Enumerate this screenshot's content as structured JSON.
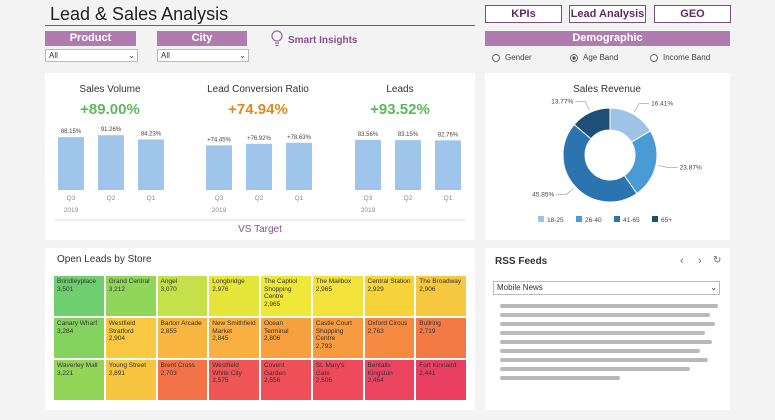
{
  "header": {
    "title": "Lead & Sales Analysis",
    "nav": [
      "KPIs",
      "Lead Analysis",
      "GEO"
    ]
  },
  "filters": [
    {
      "label": "Product",
      "value": "All"
    },
    {
      "label": "City",
      "value": "All"
    }
  ],
  "insights": "Smart Insights",
  "demographic": {
    "title": "Demographic",
    "options": [
      "Gender",
      "Age Band",
      "Income Band"
    ],
    "selected": 1
  },
  "kpis": [
    {
      "title": "Sales Volume",
      "headline": "+89.00%",
      "headline_color": "#5cb85c",
      "year": "2019",
      "categories": [
        "Q3",
        "Q2",
        "Q1"
      ],
      "values": [
        88.15,
        91.26,
        84.23
      ],
      "value_labels": [
        "88.15%",
        "91.26%",
        "84.23%"
      ]
    },
    {
      "title": "Lead Conversion Ratio",
      "headline": "+74.94%",
      "headline_color": "#e08a1e",
      "year": "2019",
      "categories": [
        "Q3",
        "Q2",
        "Q1"
      ],
      "values": [
        74.45,
        76.92,
        78.63
      ],
      "value_labels": [
        "+74.45%",
        "+76.92%",
        "+78.63%"
      ]
    },
    {
      "title": "Leads",
      "headline": "+93.52%",
      "headline_color": "#5cb85c",
      "year": "2019",
      "categories": [
        "Q3",
        "Q2",
        "Q1"
      ],
      "values": [
        83.56,
        83.15,
        82.76
      ],
      "value_labels": [
        "83.56%",
        "83.15%",
        "82.76%"
      ]
    }
  ],
  "kpi_bar_color": "#9fc5ea",
  "kpi_ylim": [
    0,
    100
  ],
  "kpi_footer": "VS Target",
  "revenue": {
    "title": "Sales Revenue",
    "categories": [
      "18-25",
      "26-40",
      "41-65",
      "65+"
    ],
    "values": [
      16.41,
      23.87,
      45.85,
      13.77
    ],
    "value_labels": [
      "16.41%",
      "23.87%",
      "45.85%",
      "13.77%"
    ],
    "colors": [
      "#9dc3e6",
      "#4a9ad4",
      "#2b74b0",
      "#1d4f78"
    ]
  },
  "stores": {
    "title": "Open Leads by Store",
    "cells": [
      {
        "name": "Brindleyplace",
        "value": "3,501",
        "color": "#6fcf6f"
      },
      {
        "name": "Grand Central",
        "value": "3,212",
        "color": "#8fd65a"
      },
      {
        "name": "Angel",
        "value": "3,070",
        "color": "#c6e04a"
      },
      {
        "name": "Longbridge",
        "value": "2,976",
        "color": "#e6e63a"
      },
      {
        "name": "The Captiol Shopping Centre",
        "value": "2,965",
        "color": "#f0e838"
      },
      {
        "name": "The Mailbox",
        "value": "2,965",
        "color": "#f2e23a"
      },
      {
        "name": "Central Station",
        "value": "2,929",
        "color": "#f6d43a"
      },
      {
        "name": "The Broadway",
        "value": "2,906",
        "color": "#f6c840"
      },
      {
        "name": "Canary Wharf",
        "value": "3,284",
        "color": "#84d35e"
      },
      {
        "name": "Westfield Stratford",
        "value": "2,904",
        "color": "#f7c840"
      },
      {
        "name": "Barton Arcade",
        "value": "2,855",
        "color": "#f8b540"
      },
      {
        "name": "New Smithfield Market",
        "value": "2,845",
        "color": "#f8b040"
      },
      {
        "name": "Ocean Terminal",
        "value": "2,806",
        "color": "#f7a040"
      },
      {
        "name": "Castle Court Shopping Centre",
        "value": "2,793",
        "color": "#f79a40"
      },
      {
        "name": "Oxford Circus",
        "value": "2,763",
        "color": "#f58a40"
      },
      {
        "name": "Bullring",
        "value": "2,719",
        "color": "#f47a45"
      },
      {
        "name": "Waverley Mall",
        "value": "3,221",
        "color": "#92d558"
      },
      {
        "name": "Young Street",
        "value": "2,891",
        "color": "#f7c540"
      },
      {
        "name": "Brent Cross",
        "value": "2,703",
        "color": "#f47248"
      },
      {
        "name": "Westfield White City",
        "value": "2,575",
        "color": "#ef5555"
      },
      {
        "name": "Covent Garden",
        "value": "2,556",
        "color": "#ef4f58"
      },
      {
        "name": "St. Mary's Gate",
        "value": "2,506",
        "color": "#ee4a5c"
      },
      {
        "name": "Bentalls Kingston",
        "value": "2,464",
        "color": "#ec4460"
      },
      {
        "name": "Fort Kinnaird",
        "value": "2,441",
        "color": "#eb3f62"
      }
    ]
  },
  "rss": {
    "title": "RSS Feeds",
    "feed": "Mobile News"
  }
}
